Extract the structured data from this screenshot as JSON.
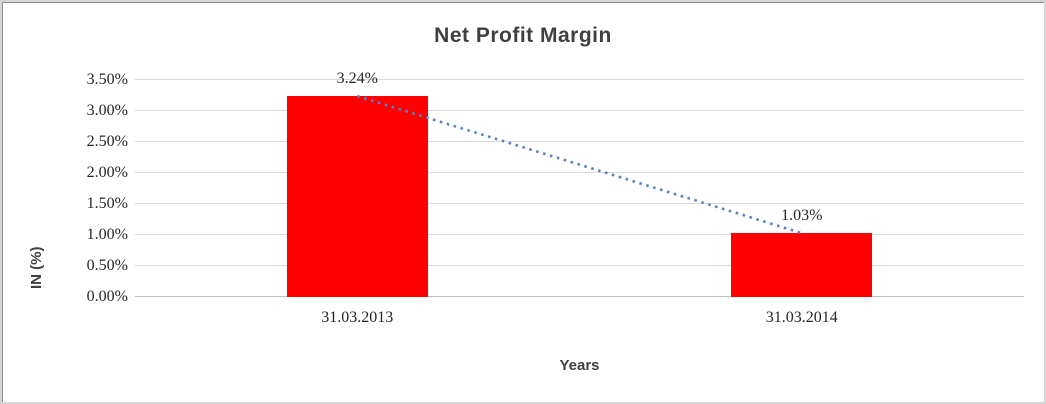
{
  "chart_data": {
    "type": "bar",
    "title": "Net Profit Margin",
    "xlabel": "Years",
    "ylabel": "IN (%)",
    "categories": [
      "31.03.2013",
      "31.03.2014"
    ],
    "values": [
      3.24,
      1.03
    ],
    "data_labels": [
      "3.24%",
      "1.03%"
    ],
    "ylim": [
      0,
      3.5
    ],
    "ytick_step": 0.5,
    "ytick_labels": [
      "0.00%",
      "0.50%",
      "1.00%",
      "1.50%",
      "2.00%",
      "2.50%",
      "3.00%",
      "3.50%"
    ],
    "grid": true,
    "legend": "none",
    "bar_color": "#ff0000",
    "gridline_color": "#d9d9d9",
    "axis_line_color": "#bfbfbf",
    "trendline": {
      "type": "linear",
      "style": "dotted",
      "color": "#5585c5"
    },
    "title_color": "#404040",
    "tick_color": "#262626"
  }
}
